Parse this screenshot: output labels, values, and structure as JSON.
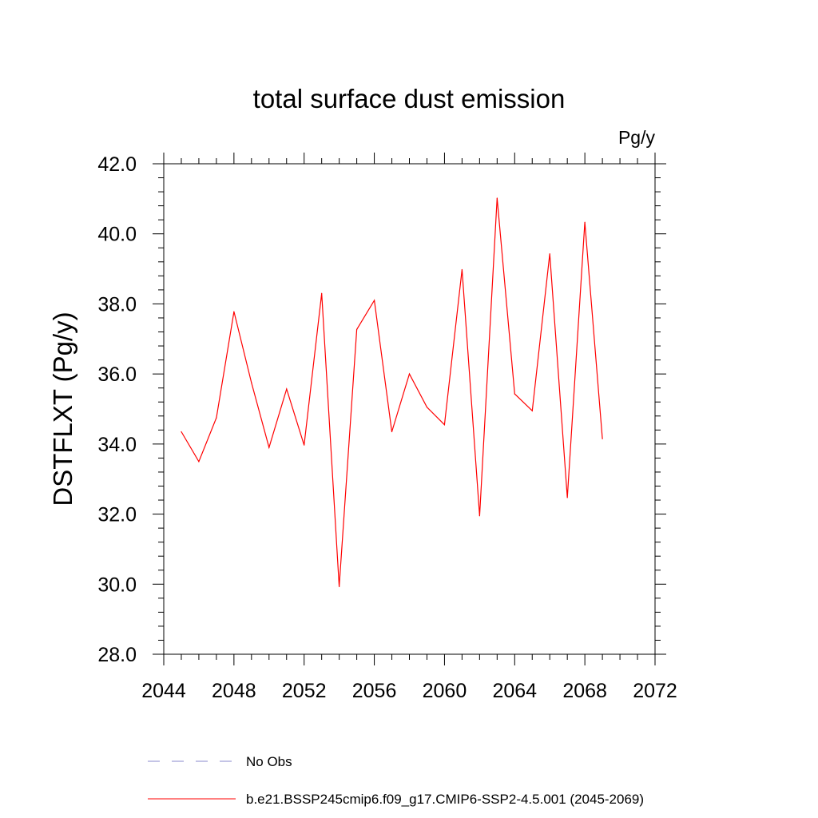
{
  "chart_data": {
    "type": "line",
    "title": "total surface dust emission",
    "units": "Pg/y",
    "xlabel": "",
    "ylabel": "DSTFLXT  (Pg/y)",
    "xlim": [
      2044,
      2072
    ],
    "ylim": [
      28.0,
      42.0
    ],
    "x_ticks": [
      "2044",
      "2048",
      "2052",
      "2056",
      "2060",
      "2064",
      "2068",
      "2072"
    ],
    "y_ticks": [
      "28.0",
      "30.0",
      "32.0",
      "34.0",
      "36.0",
      "38.0",
      "40.0",
      "42.0"
    ],
    "series": [
      {
        "name": "b.e21.BSSP245cmip6.f09_g17.CMIP6-SSP2-4.5.001 (2045-2069)",
        "color": "#ff0000",
        "x": [
          2045,
          2046,
          2047,
          2048,
          2049,
          2050,
          2051,
          2052,
          2053,
          2054,
          2055,
          2056,
          2057,
          2058,
          2059,
          2060,
          2061,
          2062,
          2063,
          2064,
          2065,
          2066,
          2067,
          2068,
          2069
        ],
        "y": [
          34.35,
          33.5,
          34.75,
          37.78,
          35.75,
          33.9,
          35.57,
          33.97,
          38.3,
          29.93,
          37.27,
          38.1,
          34.35,
          36.0,
          35.05,
          34.55,
          38.98,
          31.95,
          41.02,
          35.43,
          34.95,
          39.43,
          32.47,
          40.33,
          34.15
        ]
      }
    ],
    "legend": [
      {
        "label": "No Obs",
        "style": "dashed",
        "color": "#8888cc"
      },
      {
        "label": "b.e21.BSSP245cmip6.f09_g17.CMIP6-SSP2-4.5.001 (2045-2069)",
        "style": "solid",
        "color": "#ff0000"
      }
    ]
  }
}
